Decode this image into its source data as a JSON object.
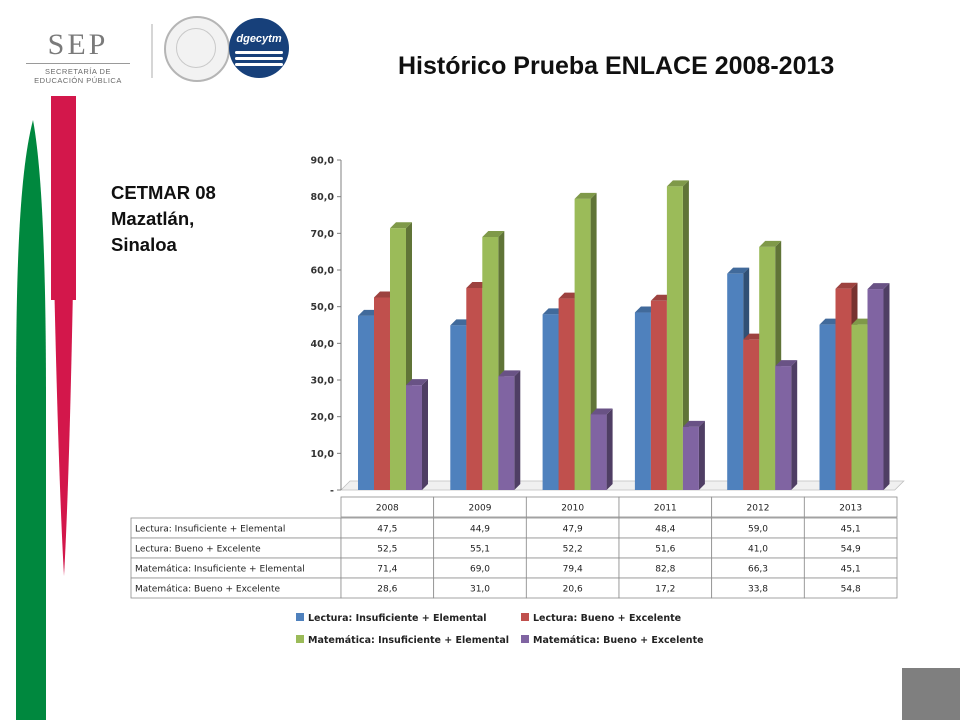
{
  "header": {
    "title": "Histórico Prueba ENLACE 2008-2013",
    "logo_sep": {
      "word": "SEP",
      "line1": "SECRETARÍA DE",
      "line2": "EDUCACIÓN PÚBLICA"
    },
    "logo_dgec": "dgecytm"
  },
  "caption": {
    "line1": "CETMAR 08",
    "line2": "Mazatlán,",
    "line3": "Sinaloa"
  },
  "colors": {
    "lectura_insuf": "#4f81bd",
    "lectura_bueno": "#c0504d",
    "mate_insuf": "#9bbb59",
    "mate_bueno": "#8064a2",
    "stripe_green": "#00883e",
    "stripe_red": "#d3174b",
    "corner": "#7f7f7f"
  },
  "chart_data": {
    "type": "bar",
    "style": "3d-clustered",
    "categories": [
      "2008",
      "2009",
      "2010",
      "2011",
      "2012",
      "2013"
    ],
    "series": [
      {
        "name": "Lectura: Insuficiente + Elemental",
        "values": [
          47.5,
          44.9,
          47.9,
          48.4,
          59.0,
          45.1
        ],
        "labels": [
          "47,5",
          "44,9",
          "47,9",
          "48,4",
          "59,0",
          "45,1"
        ]
      },
      {
        "name": "Lectura: Bueno + Excelente",
        "values": [
          52.5,
          55.1,
          52.2,
          51.6,
          41.0,
          54.9
        ],
        "labels": [
          "52,5",
          "55,1",
          "52,2",
          "51,6",
          "41,0",
          "54,9"
        ]
      },
      {
        "name": "Matemática: Insuficiente + Elemental",
        "values": [
          71.4,
          69.0,
          79.4,
          82.8,
          66.3,
          45.1
        ],
        "labels": [
          "71,4",
          "69,0",
          "79,4",
          "82,8",
          "66,3",
          "45,1"
        ]
      },
      {
        "name": "Matemática: Bueno + Excelente",
        "values": [
          28.6,
          31.0,
          20.6,
          17.2,
          33.8,
          54.8
        ],
        "labels": [
          "28,6",
          "31,0",
          "20,6",
          "17,2",
          "33,8",
          "54,8"
        ]
      }
    ],
    "ylim": [
      0,
      90
    ],
    "yticks": [
      0,
      10,
      20,
      30,
      40,
      50,
      60,
      70,
      80,
      90
    ],
    "ytick_labels": [
      "-",
      "10,0",
      "20,0",
      "30,0",
      "40,0",
      "50,0",
      "60,0",
      "70,0",
      "80,0",
      "90,0"
    ],
    "data_table": true,
    "legend_position": "bottom",
    "grid": false
  }
}
